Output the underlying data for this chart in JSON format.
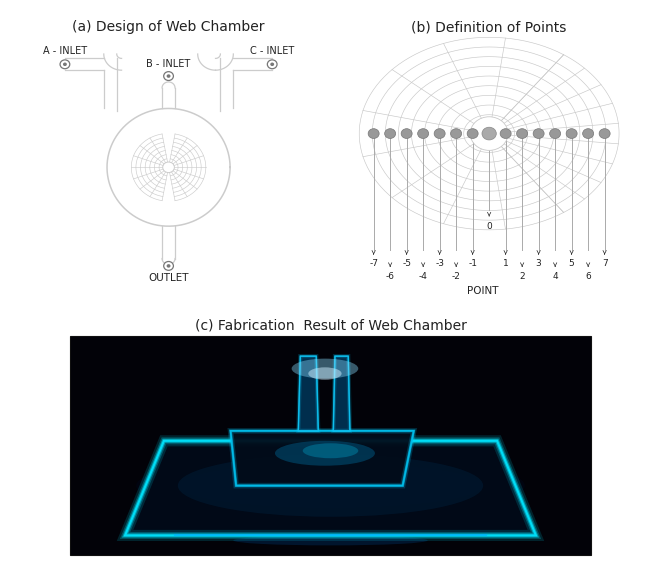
{
  "title_a": "(a) Design of Web Chamber",
  "title_b": "(b) Definition of Points",
  "title_c": "(c) Fabrication  Result of Web Chamber",
  "inlet_labels": [
    "A - INLET",
    "B - INLET",
    "C - INLET"
  ],
  "outlet_label": "OUTLET",
  "point_label": "POINT",
  "bg_color": "#ffffff",
  "draw_color": "#cccccc",
  "dark_color": "#777777",
  "text_color": "#222222",
  "title_fontsize": 10,
  "label_fontsize": 7,
  "point_fontsize": 6.5
}
